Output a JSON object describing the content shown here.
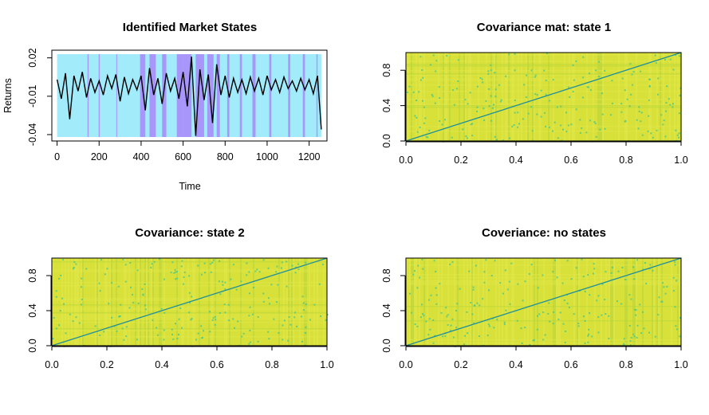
{
  "colors": {
    "state1": "#a2ebfb",
    "state2": "#a996fb",
    "line": "#000000",
    "heat_bg": "#d8e03a",
    "heat_light": "#e2e84a",
    "heat_mid": "#b6d63a",
    "heat_dark": "#3fc78e",
    "diag": "#1f8f9a"
  },
  "chart_data": [
    {
      "type": "line",
      "title": "Identified Market States",
      "xlabel": "Time",
      "ylabel": "Returns",
      "xlim": [
        0,
        1260
      ],
      "ylim": [
        -0.045,
        0.026
      ],
      "xticks": [
        0,
        200,
        400,
        600,
        800,
        1000,
        1200
      ],
      "yticks": [
        -0.04,
        -0.01,
        0.02
      ],
      "ytick_labels": [
        "-0.04",
        "-0.01",
        "0.02"
      ],
      "background_states": [
        "state 1",
        "state 2"
      ],
      "state2_intervals": [
        [
          145,
          150
        ],
        [
          198,
          203
        ],
        [
          282,
          286
        ],
        [
          395,
          420
        ],
        [
          440,
          470
        ],
        [
          500,
          520
        ],
        [
          570,
          600
        ],
        [
          600,
          640
        ],
        [
          660,
          700
        ],
        [
          715,
          745
        ],
        [
          760,
          775
        ],
        [
          810,
          820
        ],
        [
          870,
          880
        ],
        [
          930,
          945
        ],
        [
          1010,
          1020
        ],
        [
          1100,
          1110
        ],
        [
          1170,
          1180
        ],
        [
          1235,
          1240
        ]
      ],
      "series": [
        {
          "x": [
            0,
            20,
            40,
            60,
            80,
            100,
            120,
            140,
            160,
            180,
            200,
            220,
            240,
            260,
            280,
            300,
            320,
            340,
            360,
            380,
            400,
            420,
            440,
            460,
            480,
            500,
            520,
            540,
            560,
            580,
            600,
            620,
            640,
            660,
            680,
            700,
            720,
            740,
            760,
            780,
            800,
            820,
            840,
            860,
            880,
            900,
            920,
            940,
            960,
            980,
            1000,
            1020,
            1040,
            1060,
            1080,
            1100,
            1120,
            1140,
            1160,
            1180,
            1200,
            1220,
            1240,
            1258
          ],
          "y": [
            0.003,
            -0.012,
            0.008,
            -0.028,
            0.006,
            -0.006,
            0.009,
            -0.011,
            0.004,
            -0.007,
            0.002,
            -0.009,
            0.006,
            -0.004,
            0.007,
            -0.014,
            0.005,
            -0.008,
            0.003,
            -0.005,
            0.006,
            -0.021,
            0.012,
            -0.009,
            0.004,
            -0.016,
            0.008,
            -0.006,
            0.004,
            -0.012,
            0.009,
            -0.018,
            0.021,
            -0.041,
            0.011,
            -0.013,
            0.007,
            -0.031,
            0.015,
            -0.009,
            0.006,
            -0.011,
            0.004,
            -0.007,
            0.003,
            -0.008,
            0.005,
            -0.006,
            0.004,
            -0.009,
            0.006,
            -0.005,
            0.003,
            -0.007,
            0.005,
            -0.004,
            0.002,
            -0.006,
            0.004,
            -0.005,
            0.003,
            -0.008,
            0.006,
            -0.036
          ]
        }
      ]
    },
    {
      "type": "heatmap",
      "title": "Covariance mat: state 1",
      "xlim": [
        0,
        1
      ],
      "ylim": [
        0,
        1
      ],
      "xticks": [
        0.0,
        0.2,
        0.4,
        0.6,
        0.8,
        1.0
      ],
      "yticks": [
        0.0,
        0.4,
        0.8
      ],
      "diagonal": true
    },
    {
      "type": "heatmap",
      "title": "Covariance: state 2",
      "xlim": [
        0,
        1
      ],
      "ylim": [
        0,
        1
      ],
      "xticks": [
        0.0,
        0.2,
        0.4,
        0.6,
        0.8,
        1.0
      ],
      "yticks": [
        0.0,
        0.4,
        0.8
      ],
      "diagonal": true
    },
    {
      "type": "heatmap",
      "title": "Coveriance: no states",
      "xlim": [
        0,
        1
      ],
      "ylim": [
        0,
        1
      ],
      "xticks": [
        0.0,
        0.2,
        0.4,
        0.6,
        0.8,
        1.0
      ],
      "yticks": [
        0.0,
        0.4,
        0.8
      ],
      "diagonal": true
    }
  ]
}
